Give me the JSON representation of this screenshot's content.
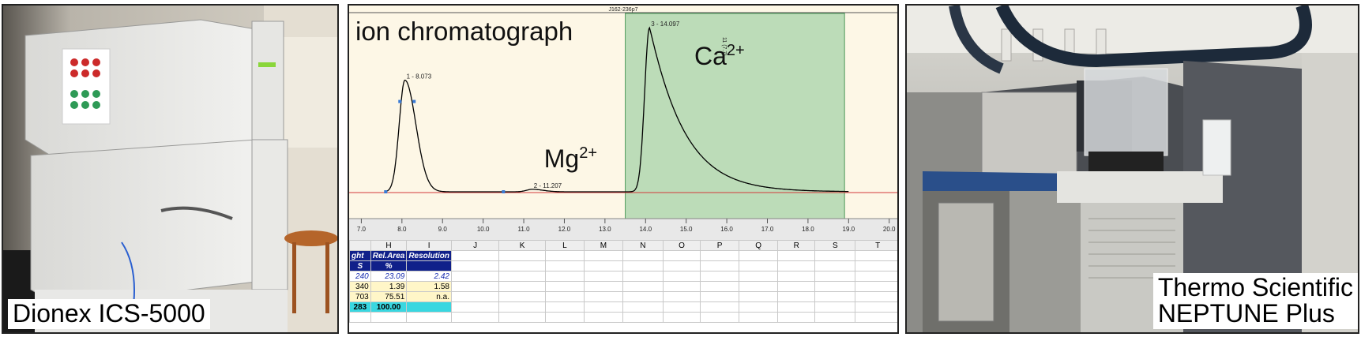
{
  "left_panel": {
    "caption": "Dionex ICS-5000"
  },
  "right_panel": {
    "caption_line1": "Thermo Scientific",
    "caption_line2": "NEPTUNE Plus"
  },
  "chromatogram": {
    "header": "J162-236p7",
    "title": "ion chromatograph",
    "colors": {
      "background": "#fdf7e6",
      "highlight": "#bcdcb8",
      "trace": "#000000",
      "baseline": "#d23a3a",
      "marker": "#3a7bd5"
    },
    "chart_data": {
      "type": "line",
      "xlim": [
        6.7,
        20.2
      ],
      "x_ticks": [
        "7.0",
        "8.0",
        "9.0",
        "10.0",
        "11.0",
        "12.0",
        "13.0",
        "14.0",
        "15.0",
        "16.0",
        "17.0",
        "18.0",
        "19.0",
        "20.0"
      ],
      "highlight_range": [
        13.5,
        18.9
      ],
      "peaks": [
        {
          "label": "1 - 8.073",
          "rt": 8.073,
          "height": 0.68
        },
        {
          "label": "2 - 11.207",
          "rt": 11.207,
          "height": 0.015
        },
        {
          "label": "3 - 14.097",
          "rt": 14.097,
          "height": 1.0
        }
      ],
      "ion_labels": [
        {
          "ion": "Mg",
          "charge": "2+"
        },
        {
          "ion": "Ca",
          "charge": "2+"
        }
      ],
      "vertical_annotation": "11 (7.7)"
    },
    "spreadsheet": {
      "columns": [
        "",
        "H",
        "I",
        "J",
        "K",
        "L",
        "M",
        "N",
        "O",
        "P",
        "Q",
        "R",
        "S",
        "T"
      ],
      "header_row1": [
        "ght",
        "Rel.Area",
        "Resolution"
      ],
      "header_row2": [
        "S",
        "%",
        ""
      ],
      "rows": [
        [
          "240",
          "23.09",
          "2.42"
        ],
        [
          "340",
          "1.39",
          "1.58"
        ],
        [
          "703",
          "75.51",
          "n.a."
        ],
        [
          "283",
          "100.00",
          ""
        ]
      ]
    }
  }
}
